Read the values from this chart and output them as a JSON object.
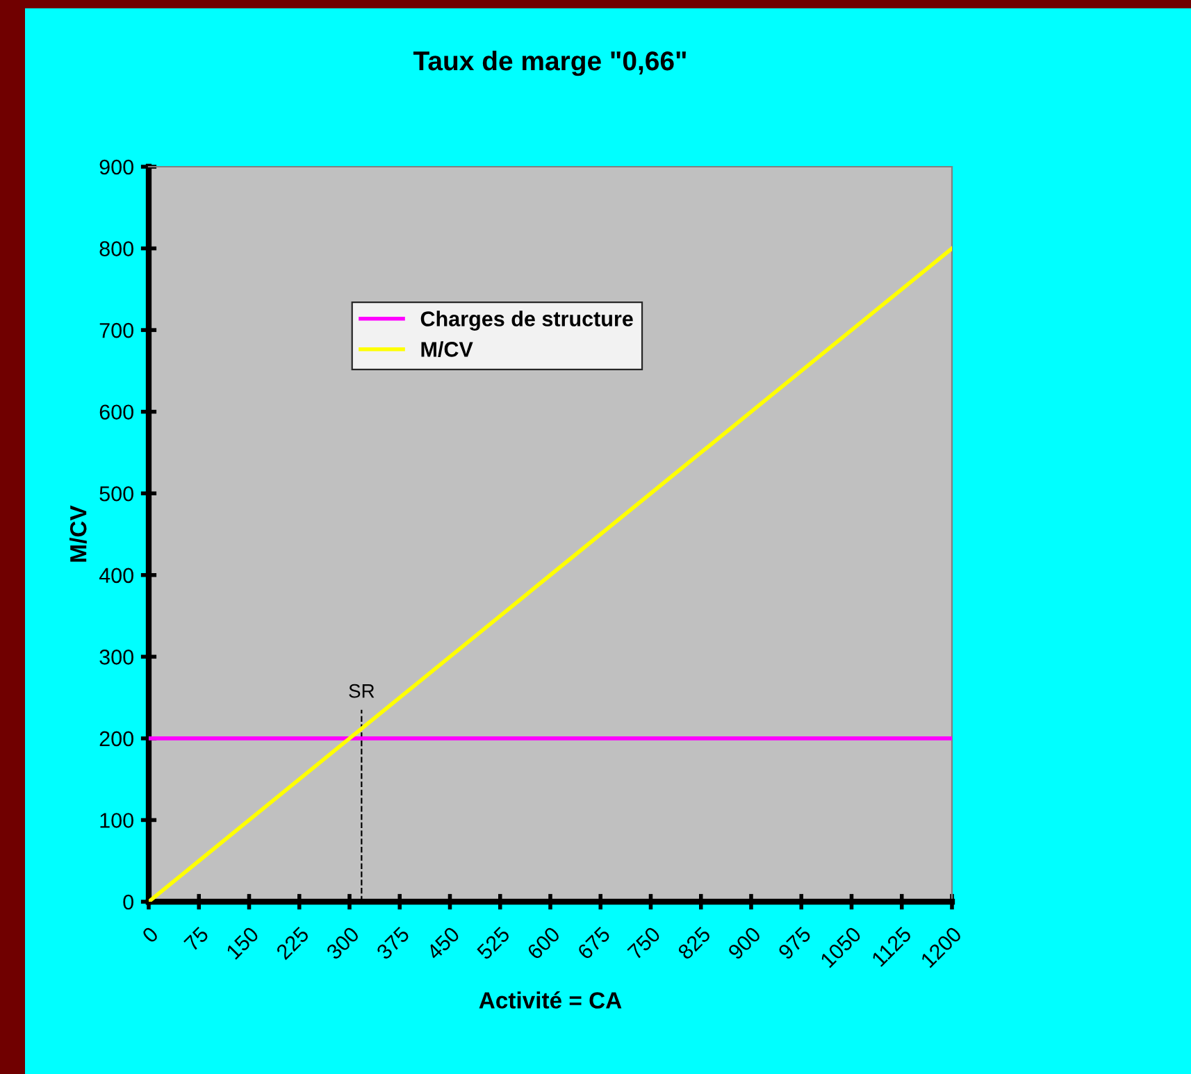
{
  "chart_data": {
    "type": "line",
    "title": "Taux de marge \"0,66\"",
    "xlabel": "Activité = CA",
    "ylabel": "M/CV",
    "x": [
      0,
      75,
      150,
      225,
      300,
      375,
      450,
      525,
      600,
      675,
      750,
      825,
      900,
      975,
      1050,
      1125,
      1200
    ],
    "series": [
      {
        "name": "Charges de structure",
        "color": "#ff00ff",
        "values": [
          200,
          200,
          200,
          200,
          200,
          200,
          200,
          200,
          200,
          200,
          200,
          200,
          200,
          200,
          200,
          200,
          200
        ]
      },
      {
        "name": "M/CV",
        "color": "#ffff00",
        "values": [
          0,
          50,
          100,
          150,
          200,
          250,
          300,
          350,
          400,
          450,
          500,
          550,
          600,
          650,
          700,
          750,
          800
        ]
      }
    ],
    "xlim": [
      0,
      1200
    ],
    "xticks": [
      0,
      75,
      150,
      225,
      300,
      375,
      450,
      525,
      600,
      675,
      750,
      825,
      900,
      975,
      1050,
      1125,
      1200
    ],
    "ylim": [
      0,
      900
    ],
    "yticks": [
      0,
      100,
      200,
      300,
      400,
      500,
      600,
      700,
      800,
      900
    ],
    "ref_lines": [
      {
        "axis": "x",
        "value": 318,
        "label": "SR",
        "color": "#000000",
        "line_style": "dashed"
      }
    ],
    "grid": false,
    "legend": "top left",
    "marker": "none",
    "line_style": "solid"
  }
}
